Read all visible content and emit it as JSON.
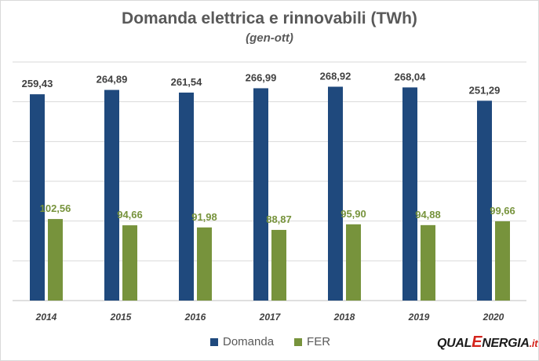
{
  "chart_data": {
    "type": "bar",
    "title": "Domanda elettrica e rinnovabili (TWh)",
    "subtitle": "(gen-ott)",
    "categories": [
      "2014",
      "2015",
      "2016",
      "2017",
      "2018",
      "2019",
      "2020"
    ],
    "series": [
      {
        "name": "Domanda",
        "color": "#1f497d",
        "values": [
          259.43,
          264.89,
          261.54,
          266.99,
          268.92,
          268.04,
          251.29
        ],
        "labels": [
          "259,43",
          "264,89",
          "261,54",
          "266,99",
          "268,92",
          "268,04",
          "251,29"
        ]
      },
      {
        "name": "FER",
        "color": "#77933c",
        "values": [
          102.56,
          94.66,
          91.98,
          88.87,
          95.9,
          94.88,
          99.66
        ],
        "labels": [
          "102,56",
          "94,66",
          "91,98",
          "88,87",
          "95,90",
          "94,88",
          "99,66"
        ]
      }
    ],
    "ylim": [
      0,
      300
    ],
    "grid": true,
    "legend": "bottom"
  },
  "logo": {
    "part1": "QUAL",
    "part2": "E",
    "part3": "NERGIA",
    "part4": ".it"
  }
}
